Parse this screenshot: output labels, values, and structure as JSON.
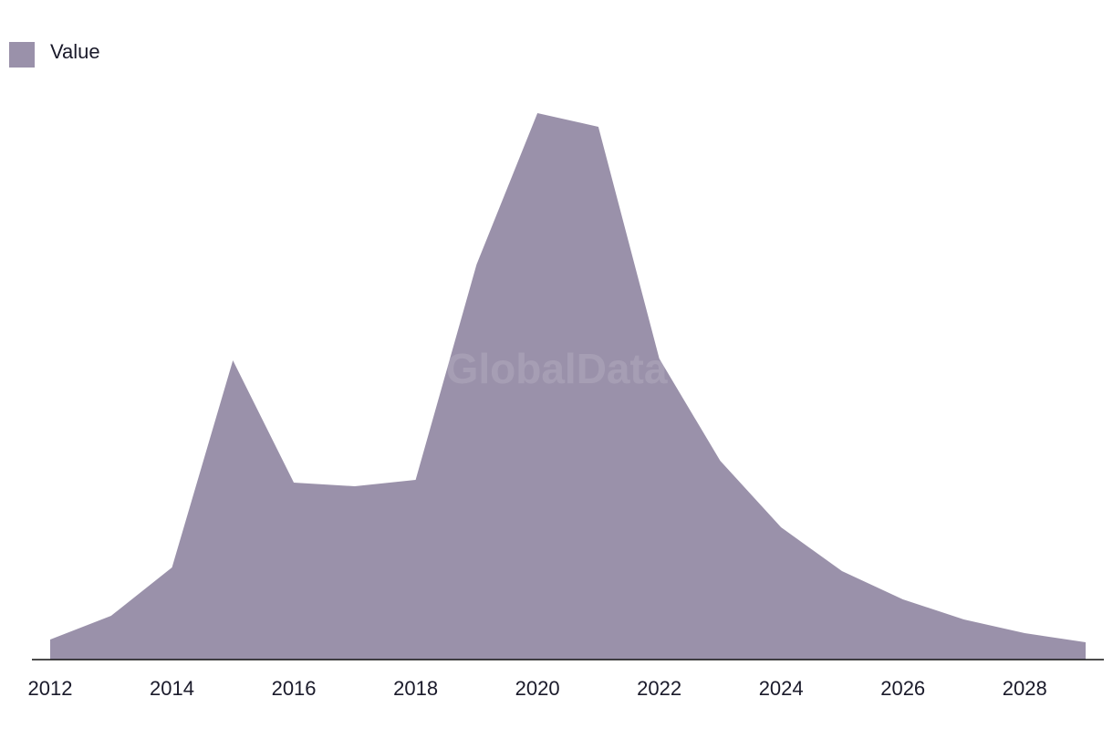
{
  "chart_data": {
    "type": "area",
    "watermark": "GlobalData",
    "x": [
      2012,
      2013,
      2014,
      2015,
      2016,
      2017,
      2018,
      2019,
      2020,
      2021,
      2022,
      2023,
      2024,
      2025,
      2026,
      2027,
      2028,
      2029
    ],
    "xlim": [
      2012,
      2029
    ],
    "xticks": [
      2012,
      2014,
      2016,
      2018,
      2020,
      2022,
      2024,
      2026,
      2028
    ],
    "series": [
      {
        "name": "Value",
        "color": "#9a91aa",
        "values": [
          22,
          48,
          101,
          328,
          194,
          190,
          197,
          433,
          599,
          584,
          330,
          218,
          145,
          97,
          66,
          44,
          29,
          19
        ]
      }
    ],
    "legend": "top-left"
  }
}
